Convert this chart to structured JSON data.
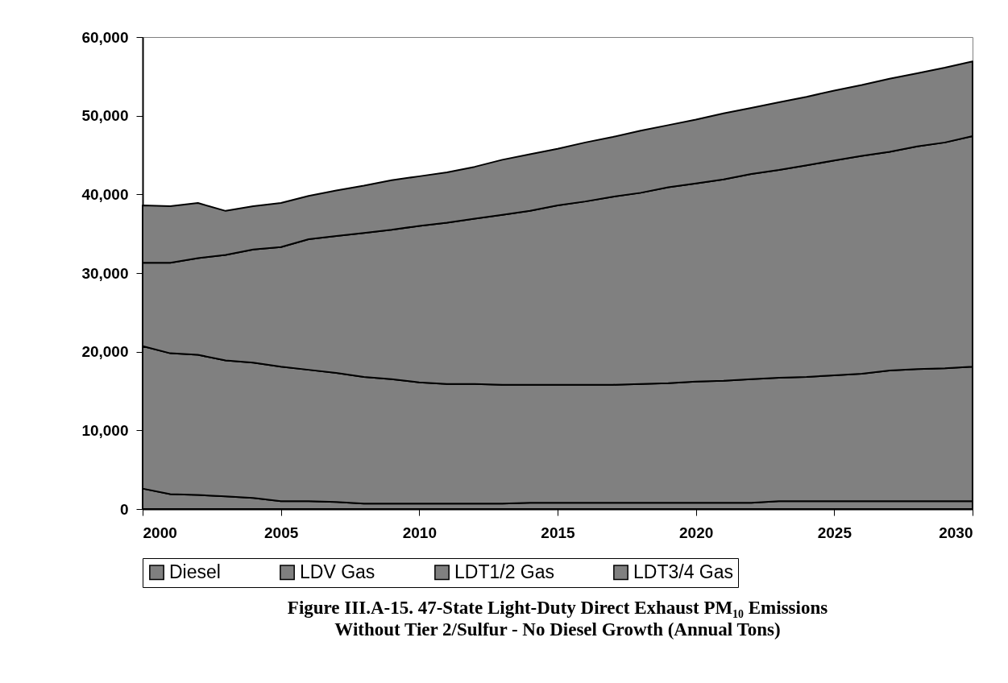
{
  "chart_data": {
    "type": "area",
    "stacked": true,
    "title": "Figure III.A-15.  47-State Light-Duty Direct Exhaust PM₁₀ Emissions",
    "subtitle": "Without Tier 2/Sulfur - No Diesel Growth (Annual Tons)",
    "x": [
      2000,
      2001,
      2002,
      2003,
      2004,
      2005,
      2006,
      2007,
      2008,
      2009,
      2010,
      2011,
      2012,
      2013,
      2014,
      2015,
      2016,
      2017,
      2018,
      2019,
      2020,
      2021,
      2022,
      2023,
      2024,
      2025,
      2026,
      2027,
      2028,
      2029,
      2030
    ],
    "series": [
      {
        "name": "Diesel",
        "color": "#808080",
        "values": [
          2600,
          1900,
          1800,
          1600,
          1400,
          1000,
          1000,
          900,
          700,
          700,
          700,
          700,
          700,
          700,
          800,
          800,
          800,
          800,
          800,
          800,
          800,
          800,
          800,
          1000,
          1000,
          1000,
          1000,
          1000,
          1000,
          1000,
          1000
        ]
      },
      {
        "name": "LDV Gas",
        "color": "#808080",
        "values": [
          18100,
          17900,
          17800,
          17300,
          17200,
          17100,
          16700,
          16400,
          16100,
          15800,
          15400,
          15200,
          15200,
          15100,
          15000,
          15000,
          15000,
          15000,
          15100,
          15200,
          15400,
          15500,
          15700,
          15700,
          15800,
          16000,
          16200,
          16600,
          16800,
          16900,
          17100
        ]
      },
      {
        "name": "LDT1/2 Gas",
        "color": "#808080",
        "values": [
          10600,
          11500,
          12300,
          13400,
          14400,
          15200,
          16600,
          17400,
          18300,
          19000,
          19900,
          20500,
          21000,
          21600,
          22100,
          22800,
          23300,
          23900,
          24300,
          24900,
          25200,
          25600,
          26100,
          26400,
          26900,
          27300,
          27700,
          27800,
          28300,
          28700,
          29300
        ]
      },
      {
        "name": "LDT3/4 Gas",
        "color": "#808080",
        "values": [
          7300,
          7200,
          7000,
          5600,
          5500,
          5600,
          5500,
          5800,
          6000,
          6300,
          6300,
          6400,
          6600,
          7000,
          7200,
          7200,
          7500,
          7600,
          7900,
          7900,
          8100,
          8400,
          8400,
          8600,
          8700,
          8900,
          9000,
          9300,
          9300,
          9500,
          9500
        ]
      }
    ],
    "xlim": [
      2000,
      2030
    ],
    "xticks": [
      2000,
      2005,
      2010,
      2015,
      2020,
      2025,
      2030
    ],
    "ylim": [
      0,
      60000
    ],
    "yticks": [
      0,
      {
        "value": 10000,
        "label": "10,000"
      },
      {
        "value": 20000,
        "label": "20,000"
      },
      {
        "value": 30000,
        "label": "30,000"
      },
      {
        "value": 40000,
        "label": "40,000"
      },
      {
        "value": 50000,
        "label": "50,000"
      },
      {
        "value": 60000,
        "label": "60,000"
      }
    ],
    "grid": false,
    "legend": "bottom"
  }
}
